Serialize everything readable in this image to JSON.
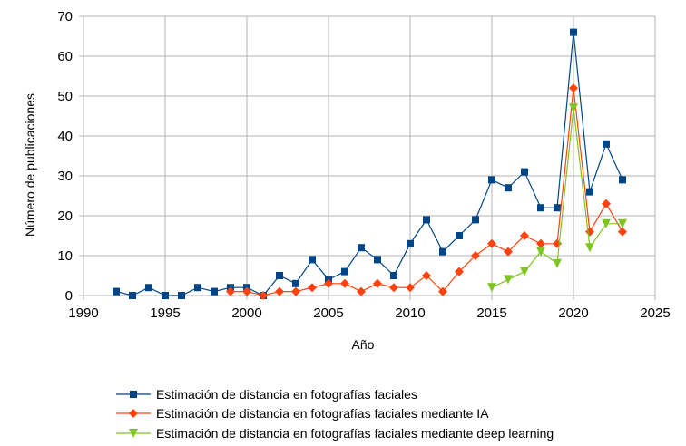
{
  "chart_data": {
    "type": "line",
    "xlabel": "Año",
    "ylabel": "Número de publicaciones",
    "xlim": [
      1990,
      2025
    ],
    "ylim": [
      0,
      70
    ],
    "xticks": [
      1990,
      1995,
      2000,
      2005,
      2010,
      2015,
      2020,
      2025
    ],
    "yticks": [
      0,
      10,
      20,
      30,
      40,
      50,
      60,
      70
    ],
    "grid": true,
    "legend_position": "bottom",
    "series": [
      {
        "name": "Estimación de distancia en fotografías faciales",
        "color": "#004586",
        "marker": "square",
        "x": [
          1992,
          1993,
          1994,
          1995,
          1996,
          1997,
          1998,
          1999,
          2000,
          2001,
          2002,
          2003,
          2004,
          2005,
          2006,
          2007,
          2008,
          2009,
          2010,
          2011,
          2012,
          2013,
          2014,
          2015,
          2016,
          2017,
          2018,
          2019,
          2020,
          2021,
          2022,
          2023
        ],
        "y": [
          1,
          0,
          2,
          0,
          0,
          2,
          1,
          2,
          2,
          0,
          5,
          3,
          9,
          4,
          6,
          12,
          9,
          5,
          13,
          19,
          11,
          15,
          19,
          29,
          27,
          31,
          22,
          22,
          66,
          26,
          38,
          29
        ]
      },
      {
        "name": "Estimación de distancia en fotografías faciales mediante IA",
        "color": "#ff420e",
        "marker": "diamond",
        "x": [
          1999,
          2000,
          2001,
          2002,
          2003,
          2004,
          2005,
          2006,
          2007,
          2008,
          2009,
          2010,
          2011,
          2012,
          2013,
          2014,
          2015,
          2016,
          2017,
          2018,
          2019,
          2020,
          2021,
          2022,
          2023
        ],
        "y": [
          1,
          1,
          0,
          1,
          1,
          2,
          3,
          3,
          1,
          3,
          2,
          2,
          5,
          1,
          6,
          10,
          13,
          11,
          15,
          13,
          13,
          52,
          16,
          23,
          16
        ]
      },
      {
        "name": "Estimación de distancia en fotografías faciales mediante deep learning",
        "color": "#7ec521",
        "marker": "triangle-down",
        "x": [
          2015,
          2016,
          2017,
          2018,
          2019,
          2020,
          2021,
          2022,
          2023
        ],
        "y": [
          2,
          4,
          6,
          11,
          8,
          47,
          12,
          18,
          18
        ]
      }
    ]
  }
}
